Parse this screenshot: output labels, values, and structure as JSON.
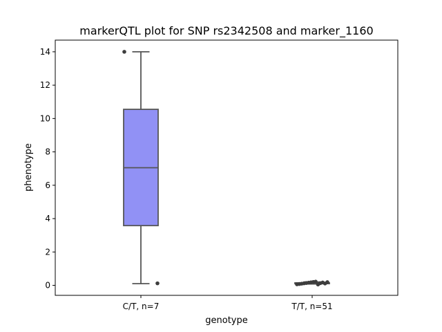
{
  "chart_data": {
    "type": "box",
    "title": "markerQTL plot for SNP rs2342508 and marker_1160",
    "xlabel": "genotype",
    "ylabel": "phenotype",
    "ylim": [
      -0.6,
      14.7
    ],
    "yticks": [
      0,
      2,
      4,
      6,
      8,
      10,
      12,
      14
    ],
    "categories": [
      "C/T, n=7",
      "T/T, n=51"
    ],
    "boxes": [
      {
        "category": "C/T, n=7",
        "whisker_low": 0.1,
        "q1": 3.58,
        "median": 7.05,
        "q3": 10.55,
        "whisker_high": 14.0,
        "outliers": [
          14.0,
          0.12
        ]
      },
      {
        "category": "T/T, n=51",
        "whisker_low": 0.08,
        "q1": 0.1,
        "median": 0.12,
        "q3": 0.15,
        "whisker_high": 0.2,
        "outliers": [
          0.06,
          0.08,
          0.1,
          0.12,
          0.14,
          0.16,
          0.18,
          0.2,
          0.22,
          0.05,
          0.13,
          0.17,
          0.11,
          0.19
        ]
      }
    ],
    "colors": {
      "box_fill": "#9191f5",
      "box_edge": "#555555",
      "points": "#3d3d3d"
    },
    "grid": false,
    "legend": "none"
  }
}
